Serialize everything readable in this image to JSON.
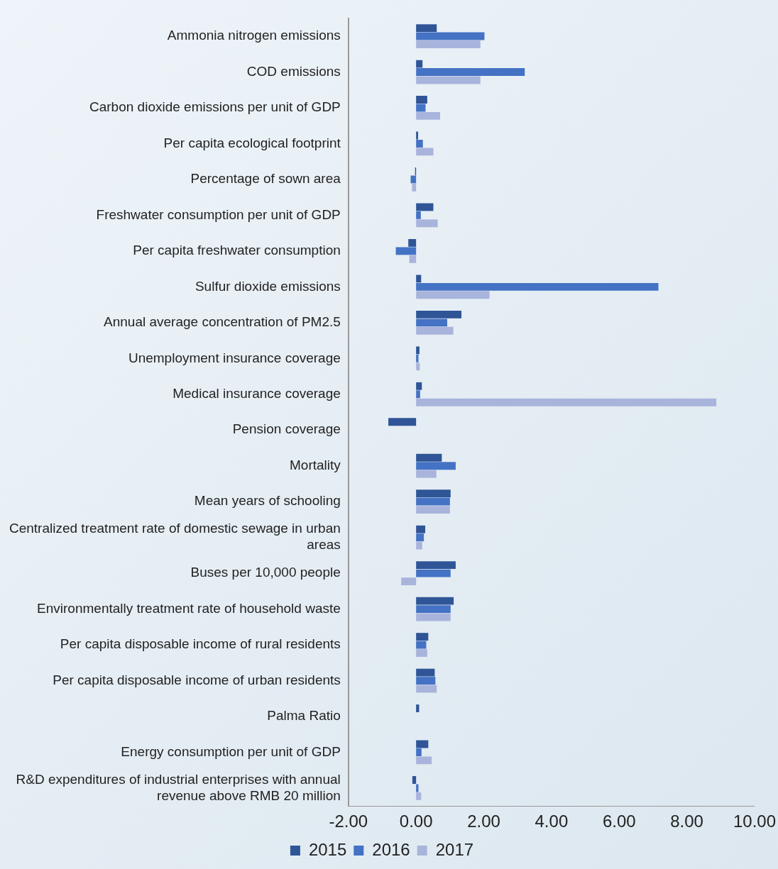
{
  "chart_data": {
    "type": "bar",
    "orientation": "horizontal",
    "legend": "bottom",
    "grid": false,
    "categories": [
      "Ammonia nitrogen emissions",
      "COD emissions",
      "Carbon dioxide emissions per unit of GDP",
      "Per capita ecological footprint",
      "Percentage of sown area",
      "Freshwater consumption per unit of GDP",
      "Per capita freshwater consumption",
      "Sulfur dioxide emissions",
      "Annual average concentration of PM2.5",
      "Unemployment insurance coverage",
      "Medical insurance coverage",
      "Pension coverage",
      "Mortality",
      "Mean years of schooling",
      "Centralized treatment rate of domestic sewage in urban areas",
      "Buses per 10,000 people",
      "Environmentally treatment rate of household waste",
      "Per capita disposable income of rural residents",
      "Per capita disposable income of urban residents",
      "Palma Ratio",
      "Energy consumption per unit of GDP",
      "R&D expenditures of industrial enterprises with annual revenue above RMB 20 million"
    ],
    "series": [
      {
        "name": "2015",
        "color": "#2f5597",
        "values": [
          0.61,
          0.19,
          0.33,
          0.06,
          -0.03,
          0.51,
          -0.23,
          0.15,
          1.34,
          0.1,
          0.17,
          -0.82,
          0.76,
          1.02,
          0.27,
          1.17,
          1.11,
          0.36,
          0.55,
          0.09,
          0.36,
          -0.11
        ]
      },
      {
        "name": "2016",
        "color": "#4472c4",
        "values": [
          2.02,
          3.21,
          0.28,
          0.2,
          -0.16,
          0.14,
          -0.6,
          7.16,
          0.92,
          0.07,
          0.12,
          0,
          1.17,
          1.0,
          0.23,
          1.02,
          1.02,
          0.3,
          0.57,
          0,
          0.16,
          0.07
        ]
      },
      {
        "name": "2017",
        "color": "#a9b4dc",
        "values": [
          1.9,
          1.9,
          0.71,
          0.51,
          -0.12,
          0.64,
          -0.2,
          2.17,
          1.1,
          0.11,
          8.87,
          0,
          0.6,
          1.0,
          0.18,
          -0.44,
          1.02,
          0.33,
          0.61,
          0,
          0.46,
          0.15
        ]
      }
    ],
    "xlim": [
      -2,
      10
    ],
    "xticks": [
      {
        "value": -2,
        "label": "-2.00"
      },
      {
        "value": 0,
        "label": "0.00"
      },
      {
        "value": 2,
        "label": "2.00"
      },
      {
        "value": 4,
        "label": "4.00"
      },
      {
        "value": 6,
        "label": "6.00"
      },
      {
        "value": 8,
        "label": "8.00"
      },
      {
        "value": 10,
        "label": "10.00"
      }
    ]
  }
}
